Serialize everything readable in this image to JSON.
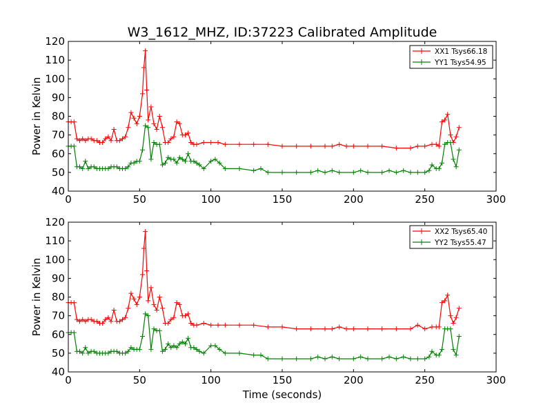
{
  "chart_data": {
    "type": "line",
    "title": "W3_1612_MHZ, ID:37223 Calibrated Amplitude",
    "xlabel": "Time (seconds)",
    "panels": [
      {
        "ylabel": "Power in Kelvin",
        "xlim": [
          0,
          300
        ],
        "ylim": [
          40,
          120
        ],
        "xticks": [
          0,
          50,
          100,
          150,
          200,
          250,
          300
        ],
        "yticks": [
          40,
          50,
          60,
          70,
          80,
          90,
          100,
          110,
          120
        ],
        "legend": "top-right",
        "series": [
          {
            "name": "XX1 Tsys66.18",
            "color": "#ff0000",
            "x": [
              0,
              2,
              4,
              6,
              8,
              10,
              12,
              14,
              16,
              18,
              20,
              22,
              24,
              26,
              28,
              30,
              32,
              34,
              36,
              38,
              40,
              42,
              44,
              46,
              48,
              50,
              52,
              53,
              54,
              55,
              56,
              58,
              60,
              62,
              64,
              66,
              68,
              70,
              72,
              74,
              76,
              78,
              80,
              82,
              84,
              86,
              88,
              90,
              95,
              100,
              105,
              110,
              120,
              130,
              140,
              150,
              160,
              170,
              180,
              185,
              190,
              195,
              200,
              210,
              220,
              230,
              240,
              245,
              250,
              255,
              258,
              260,
              262,
              264,
              266,
              268,
              270,
              272,
              274
            ],
            "y": [
              77,
              77,
              77,
              68,
              67,
              68,
              67,
              68,
              68,
              67,
              67,
              66,
              66,
              68,
              69,
              67,
              73,
              67,
              67,
              68,
              69,
              74,
              82,
              79,
              76,
              80,
              92,
              106,
              115,
              94,
              78,
              85,
              76,
              73,
              80,
              74,
              66,
              66,
              68,
              69,
              77,
              76,
              70,
              70,
              71,
              66,
              65,
              65,
              66,
              66,
              66,
              65,
              65,
              65,
              65,
              64,
              64,
              64,
              64,
              64,
              65,
              64,
              64,
              64,
              64,
              63,
              63,
              64,
              64,
              65,
              65,
              64,
              77,
              78,
              81,
              70,
              66,
              69,
              74
            ]
          },
          {
            "name": "YY1 Tsys54.95",
            "color": "#008000",
            "x": [
              0,
              2,
              4,
              6,
              8,
              10,
              12,
              14,
              16,
              18,
              20,
              22,
              24,
              26,
              28,
              30,
              32,
              34,
              36,
              38,
              40,
              42,
              44,
              46,
              48,
              50,
              52,
              54,
              56,
              58,
              60,
              62,
              64,
              66,
              68,
              70,
              72,
              74,
              76,
              78,
              80,
              82,
              84,
              86,
              88,
              90,
              92,
              95,
              100,
              103,
              106,
              110,
              120,
              130,
              135,
              140,
              150,
              160,
              170,
              175,
              180,
              185,
              190,
              200,
              205,
              210,
              220,
              225,
              230,
              235,
              240,
              245,
              250,
              253,
              255,
              258,
              260,
              262,
              264,
              266,
              268,
              270,
              272,
              274
            ],
            "y": [
              64,
              64,
              64,
              53,
              53,
              52,
              56,
              52,
              53,
              53,
              52,
              52,
              52,
              52,
              52,
              53,
              53,
              53,
              52,
              52,
              52,
              53,
              55,
              55,
              56,
              56,
              62,
              75,
              74,
              57,
              66,
              65,
              65,
              54,
              55,
              58,
              57,
              57,
              55,
              58,
              57,
              56,
              60,
              56,
              56,
              55,
              54,
              52,
              56,
              57,
              55,
              52,
              52,
              51,
              52,
              50,
              50,
              50,
              50,
              51,
              50,
              51,
              50,
              50,
              51,
              50,
              50,
              51,
              50,
              51,
              50,
              50,
              50,
              51,
              54,
              52,
              52,
              55,
              65,
              66,
              66,
              57,
              53,
              62
            ]
          }
        ]
      },
      {
        "ylabel": "Power in Kelvin",
        "xlim": [
          0,
          300
        ],
        "ylim": [
          40,
          120
        ],
        "xticks": [
          0,
          50,
          100,
          150,
          200,
          250,
          300
        ],
        "yticks": [
          40,
          50,
          60,
          70,
          80,
          90,
          100,
          110,
          120
        ],
        "legend": "top-right",
        "series": [
          {
            "name": "XX2 Tsys65.40",
            "color": "#ff0000",
            "x": [
              0,
              2,
              4,
              6,
              8,
              10,
              12,
              14,
              16,
              18,
              20,
              22,
              24,
              26,
              28,
              30,
              32,
              34,
              36,
              38,
              40,
              42,
              44,
              46,
              48,
              50,
              52,
              53,
              54,
              55,
              56,
              58,
              60,
              62,
              64,
              66,
              68,
              70,
              72,
              74,
              76,
              78,
              80,
              82,
              84,
              86,
              88,
              90,
              95,
              100,
              105,
              110,
              120,
              130,
              140,
              150,
              160,
              170,
              180,
              185,
              190,
              195,
              200,
              210,
              220,
              230,
              240,
              245,
              250,
              255,
              258,
              260,
              262,
              264,
              266,
              268,
              270,
              272,
              274
            ],
            "y": [
              77,
              77,
              77,
              68,
              67,
              68,
              67,
              68,
              68,
              67,
              67,
              66,
              66,
              68,
              69,
              67,
              73,
              67,
              67,
              68,
              69,
              74,
              82,
              79,
              76,
              80,
              92,
              106,
              115,
              94,
              78,
              85,
              76,
              73,
              80,
              74,
              66,
              66,
              68,
              69,
              77,
              76,
              70,
              70,
              71,
              66,
              65,
              65,
              66,
              65,
              65,
              65,
              65,
              65,
              64,
              64,
              63,
              63,
              63,
              63,
              64,
              63,
              63,
              63,
              63,
              63,
              63,
              65,
              63,
              64,
              64,
              64,
              77,
              78,
              81,
              70,
              66,
              69,
              74
            ]
          },
          {
            "name": "YY2 Tsys55.47",
            "color": "#008000",
            "x": [
              0,
              2,
              4,
              6,
              8,
              10,
              12,
              14,
              16,
              18,
              20,
              22,
              24,
              26,
              28,
              30,
              32,
              34,
              36,
              38,
              40,
              42,
              44,
              46,
              48,
              50,
              52,
              54,
              56,
              58,
              60,
              62,
              64,
              66,
              68,
              70,
              72,
              74,
              76,
              78,
              80,
              82,
              84,
              86,
              88,
              90,
              92,
              95,
              100,
              103,
              106,
              110,
              120,
              130,
              135,
              140,
              150,
              160,
              170,
              175,
              180,
              185,
              190,
              200,
              205,
              210,
              220,
              225,
              230,
              235,
              240,
              245,
              250,
              253,
              255,
              258,
              260,
              262,
              264,
              266,
              268,
              270,
              272,
              274
            ],
            "y": [
              61,
              61,
              61,
              51,
              51,
              50,
              53,
              50,
              51,
              51,
              50,
              50,
              50,
              50,
              50,
              51,
              51,
              51,
              50,
              50,
              50,
              51,
              53,
              52,
              52,
              52,
              59,
              71,
              70,
              52,
              63,
              62,
              62,
              51,
              52,
              55,
              53,
              54,
              53,
              55,
              56,
              55,
              58,
              53,
              53,
              52,
              51,
              50,
              54,
              54,
              52,
              50,
              50,
              49,
              49,
              47,
              47,
              47,
              47,
              48,
              47,
              48,
              47,
              47,
              48,
              47,
              47,
              48,
              47,
              48,
              47,
              47,
              47,
              48,
              51,
              49,
              49,
              52,
              63,
              63,
              63,
              52,
              49,
              59
            ]
          }
        ]
      }
    ]
  }
}
